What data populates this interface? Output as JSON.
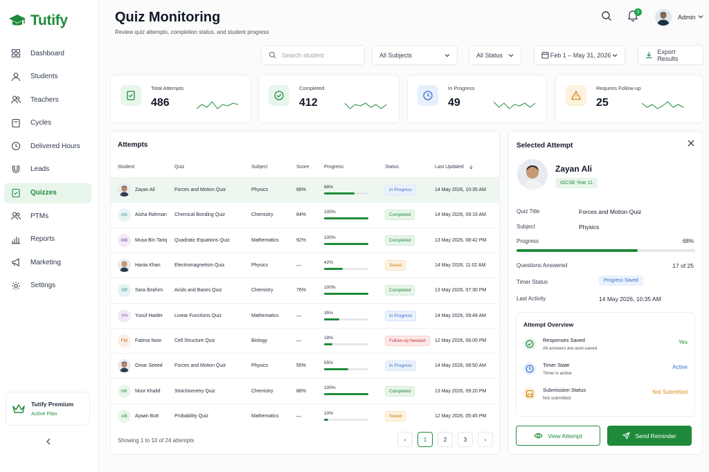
{
  "brand": {
    "name": "Tutify",
    "color": "#1f8a3a"
  },
  "sidebar": {
    "items": [
      {
        "label": "Dashboard",
        "icon": "grid-icon"
      },
      {
        "label": "Students",
        "icon": "user-icon"
      },
      {
        "label": "Teachers",
        "icon": "users-icon"
      },
      {
        "label": "Cycles",
        "icon": "calendar-icon"
      },
      {
        "label": "Delivered Hours",
        "icon": "clock-icon"
      },
      {
        "label": "Leads",
        "icon": "magnet-icon"
      },
      {
        "label": "Quizzes",
        "icon": "quiz-icon",
        "active": true
      },
      {
        "label": "PTMs",
        "icon": "users-icon"
      },
      {
        "label": "Reports",
        "icon": "bar-chart-icon"
      },
      {
        "label": "Marketing",
        "icon": "megaphone-icon"
      },
      {
        "label": "Settings",
        "icon": "gear-icon"
      }
    ],
    "premium": {
      "title": "Tutify Premium",
      "subtitle": "Active Plan"
    }
  },
  "header": {
    "title": "Quiz Monitoring",
    "subtitle": "Review quiz attempts, completion status, and student progress",
    "notification_count": "3",
    "user": "Admin"
  },
  "filters": {
    "search_placeholder": "Search student",
    "subject": "All Subjects",
    "status": "All Status",
    "date_range": "Feb 1 – May 31, 2026",
    "export_label": "Export Results"
  },
  "stats": [
    {
      "label": "Total Attempts",
      "value": "486",
      "icon": "document-check-icon",
      "color": "#1f8a3a",
      "bg": "#e8f5eb"
    },
    {
      "label": "Completed",
      "value": "412",
      "icon": "check-circle-icon",
      "color": "#1f8a3a",
      "bg": "#e8f5eb"
    },
    {
      "label": "In Progress",
      "value": "49",
      "icon": "clock-icon",
      "color": "#3b6fc4",
      "bg": "#e6effc"
    },
    {
      "label": "Requires Follow-up",
      "value": "25",
      "icon": "warning-icon",
      "color": "#d98b1a",
      "bg": "#fdf1df"
    }
  ],
  "table": {
    "title": "Attempts",
    "columns": [
      "Student",
      "Quiz",
      "Subject",
      "Score",
      "Progress",
      "Status",
      "Last Updated"
    ],
    "rows": [
      {
        "initials": "",
        "photo": true,
        "name": "Zayan Ali",
        "quiz": "Forces and Motion Quiz",
        "subject": "Physics",
        "score": "68%",
        "progress": 68,
        "progress_label": "68%",
        "status": "In Progress",
        "date": "14 May 2026, 10:35 AM"
      },
      {
        "initials": "AA",
        "name": "Aisha Rahman",
        "quiz": "Chemical Bonding Quiz",
        "subject": "Chemistry",
        "score": "84%",
        "progress": 100,
        "progress_label": "100%",
        "status": "Completed",
        "date": "14 May 2026, 09:15 AM"
      },
      {
        "initials": "MB",
        "name": "Musa Bin Tariq",
        "quiz": "Quadratic Equations Quiz",
        "subject": "Mathematics",
        "score": "92%",
        "progress": 100,
        "progress_label": "100%",
        "status": "Completed",
        "date": "13 May 2026, 08:42 PM"
      },
      {
        "initials": "",
        "photo": true,
        "name": "Hania Khan",
        "quiz": "Electromagnetism Quiz",
        "subject": "Physics",
        "score": "—",
        "progress": 42,
        "progress_label": "42%",
        "status": "Saved",
        "date": "14 May 2026, 11:02 AM"
      },
      {
        "initials": "SR",
        "name": "Sara Ibrahim",
        "quiz": "Acids and Bases Quiz",
        "subject": "Chemistry",
        "score": "76%",
        "progress": 100,
        "progress_label": "100%",
        "status": "Completed",
        "date": "13 May 2026, 07:30 PM"
      },
      {
        "initials": "YH",
        "name": "Yusuf Haider",
        "quiz": "Linear Functions Quiz",
        "subject": "Mathematics",
        "score": "—",
        "progress": 35,
        "progress_label": "35%",
        "status": "In Progress",
        "date": "14 May 2026, 09:48 AM"
      },
      {
        "initials": "FM",
        "name": "Fatima Noor",
        "quiz": "Cell Structure Quiz",
        "subject": "Biology",
        "score": "—",
        "progress": 18,
        "progress_label": "18%",
        "status": "Follow-up Needed",
        "date": "12 May 2026, 06:05 PM"
      },
      {
        "initials": "",
        "photo": true,
        "name": "Omar Seeed",
        "quiz": "Forces and Motion Quiz",
        "subject": "Physics",
        "score": "55%",
        "progress": 55,
        "progress_label": "55%",
        "status": "In Progress",
        "date": "14 May 2026, 08:50 AM"
      },
      {
        "initials": "NK",
        "name": "Noor Khalid",
        "quiz": "Stoichiometry Quiz",
        "subject": "Chemistry",
        "score": "88%",
        "progress": 100,
        "progress_label": "100%",
        "status": "Completed",
        "date": "13 May 2026, 09:20 PM"
      },
      {
        "initials": "AB",
        "name": "Ayaan Butt",
        "quiz": "Probability Quiz",
        "subject": "Mathematics",
        "score": "—",
        "progress": 10,
        "progress_label": "10%",
        "status": "Saved",
        "date": "12 May 2026, 05:45 PM"
      }
    ],
    "footer": "Showing 1 to 10 of 24 attempts",
    "pages": [
      "1",
      "2",
      "3"
    ],
    "prev": "‹",
    "next": "›"
  },
  "detail": {
    "title": "Selected Attempt",
    "name": "Zayan Ali",
    "tag": "IGCSE Year 11",
    "quiz_title_label": "Quiz Title",
    "quiz_title": "Forces and Motion Quiz",
    "subject_label": "Subject",
    "subject": "Physics",
    "progress_label": "Progress",
    "progress_value": "68%",
    "progress": 68,
    "questions_label": "Questions Answered",
    "questions": "17 of 25",
    "timer_label": "Timer Status",
    "timer": "Progress Saved",
    "activity_label": "Last Activity",
    "activity": "14 May 2026, 10:35 AM",
    "overview": {
      "title": "Attempt Overview",
      "items": [
        {
          "label": "Responses Saved",
          "sub": "All answers are auto-saved",
          "value": "Yes",
          "color": "#1f8a3a"
        },
        {
          "label": "Timer State",
          "sub": "Timer is active",
          "value": "Active",
          "color": "#3b6fc4"
        },
        {
          "label": "Submission Status",
          "sub": "Not submitted",
          "value": "Not Submitted",
          "color": "#d98b1a"
        }
      ]
    },
    "view_label": "View Attempt",
    "send_label": "Send Reminder"
  }
}
